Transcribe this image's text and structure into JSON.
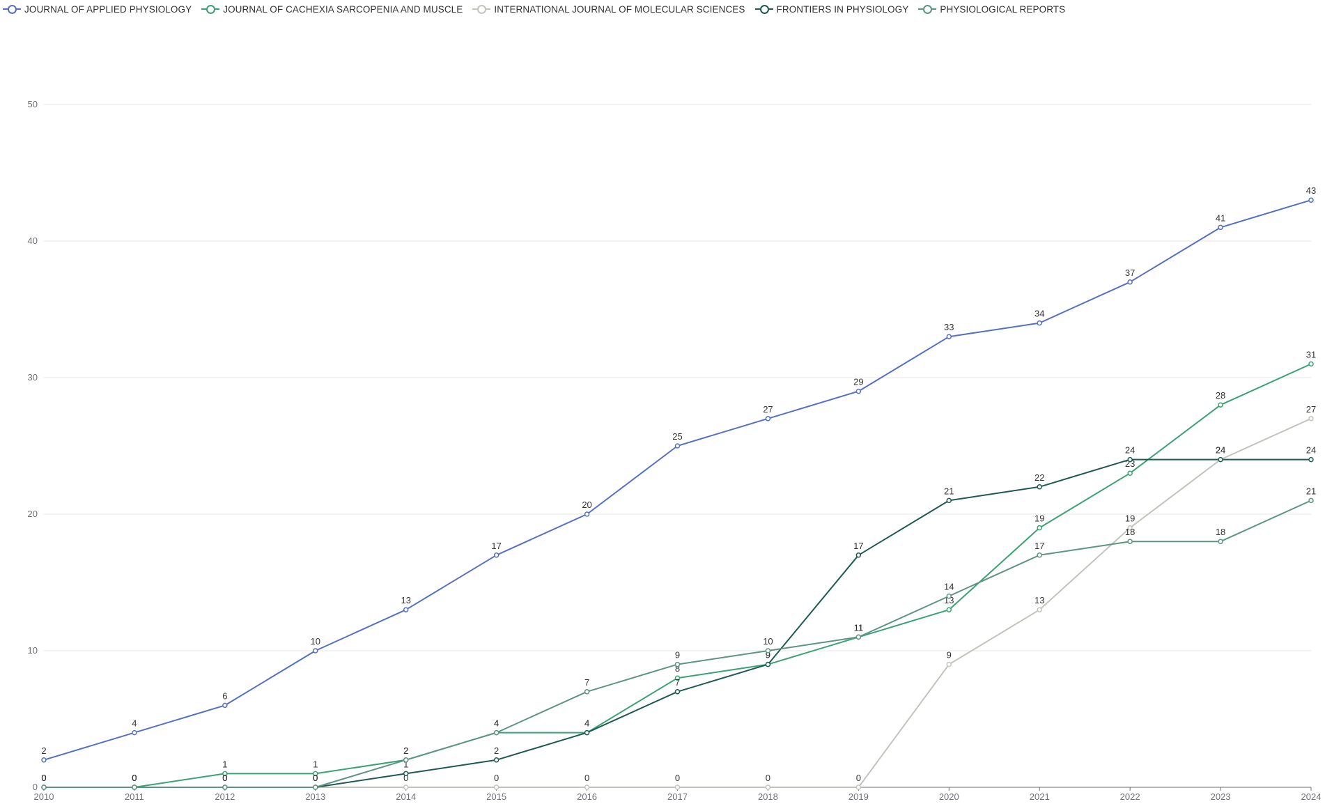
{
  "chart_data": {
    "type": "line",
    "title": "",
    "xlabel": "",
    "ylabel": "",
    "x": [
      "2010",
      "2011",
      "2012",
      "2013",
      "2014",
      "2015",
      "2016",
      "2017",
      "2018",
      "2019",
      "2020",
      "2021",
      "2022",
      "2023",
      "2024"
    ],
    "ylim": [
      0,
      50
    ],
    "y_ticks": [
      "0",
      "10",
      "20",
      "30",
      "40",
      "50"
    ],
    "grid": true,
    "legend_position": "top-left",
    "series": [
      {
        "name": "JOURNAL OF APPLIED PHYSIOLOGY",
        "color": "#5470c6",
        "values": [
          2,
          4,
          6,
          10,
          13,
          17,
          20,
          25,
          27,
          29,
          33,
          34,
          37,
          41,
          43
        ]
      },
      {
        "name": "JOURNAL OF CACHEXIA SARCOPENIA AND MUSCLE",
        "color": "#3ba272",
        "values": [
          0,
          0,
          1,
          1,
          2,
          4,
          4,
          8,
          9,
          11,
          13,
          19,
          23,
          28,
          31
        ]
      },
      {
        "name": "INTERNATIONAL JOURNAL OF MOLECULAR SCIENCES",
        "color": "#c4c4bd",
        "values": [
          0,
          0,
          0,
          0,
          0,
          0,
          0,
          0,
          0,
          0,
          9,
          13,
          19,
          24,
          27
        ]
      },
      {
        "name": "FRONTIERS IN PHYSIOLOGY",
        "color": "#1e5a52",
        "values": [
          0,
          0,
          0,
          0,
          1,
          2,
          4,
          7,
          9,
          17,
          21,
          22,
          24,
          24,
          24
        ]
      },
      {
        "name": "PHYSIOLOGICAL REPORTS",
        "color": "#5e9482",
        "values": [
          0,
          0,
          0,
          0,
          2,
          4,
          7,
          9,
          10,
          11,
          14,
          17,
          18,
          18,
          21
        ]
      }
    ]
  }
}
